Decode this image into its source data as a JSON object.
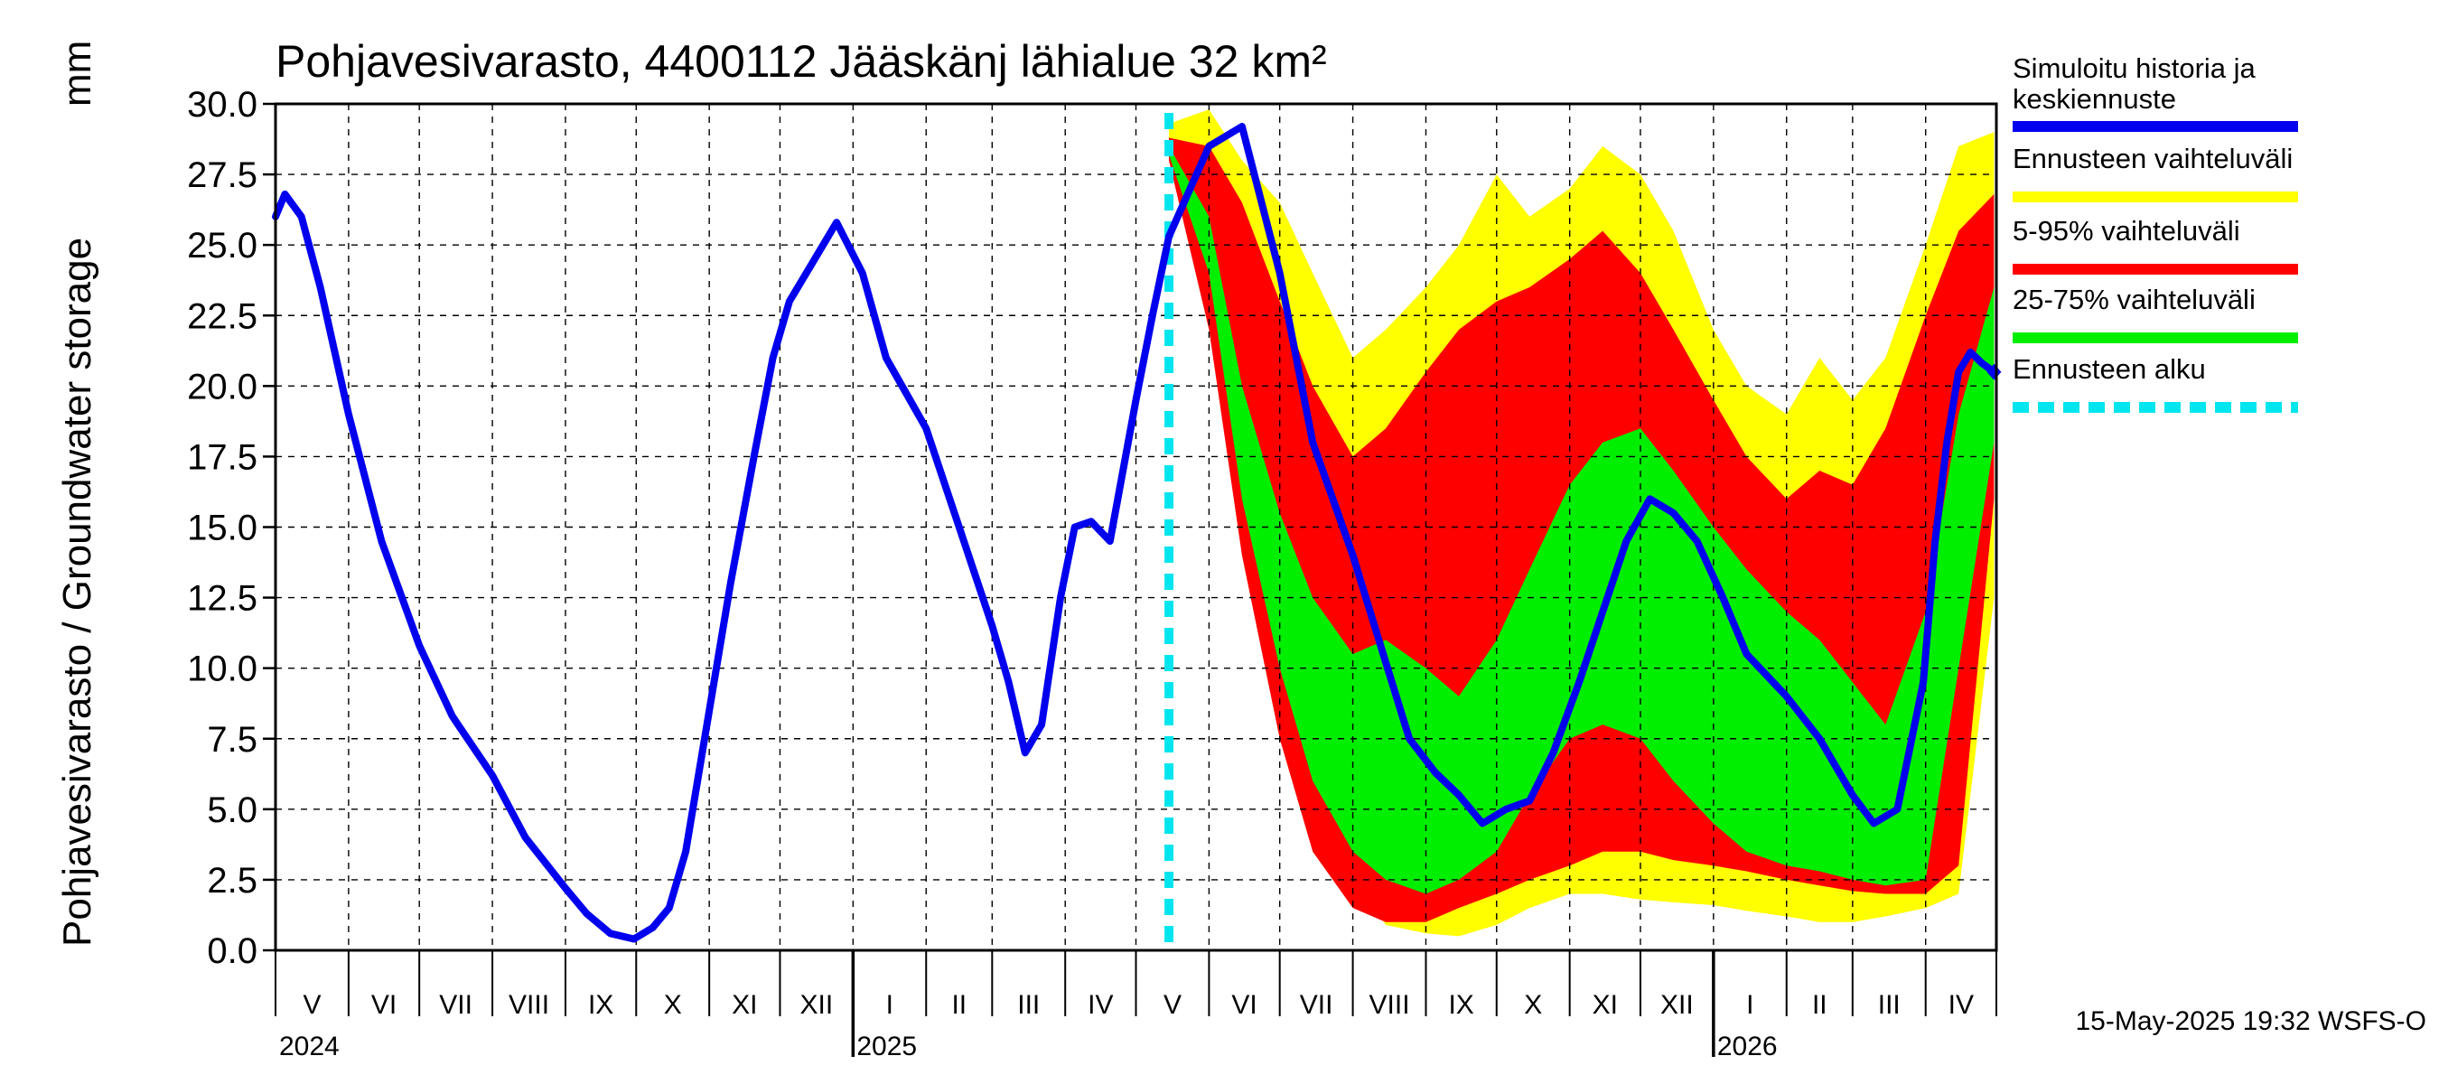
{
  "chart_data": {
    "type": "area",
    "title": "Pohjavesivarasto, 4400112 Jääskänj lähialue 32 km²",
    "ylabel": "Pohjavesivarasto / Groundwater storage",
    "yunit": "mm",
    "ylim": [
      0,
      30
    ],
    "yticks": [
      "0.0",
      "2.5",
      "5.0",
      "7.5",
      "10.0",
      "12.5",
      "15.0",
      "17.5",
      "20.0",
      "22.5",
      "25.0",
      "27.5",
      "30.0"
    ],
    "x_start": "2024-05-01",
    "x_end": "2026-04-30",
    "forecast_start": "2025-05-15",
    "month_labels": [
      "V",
      "VI",
      "VII",
      "VIII",
      "IX",
      "X",
      "XI",
      "XII",
      "I",
      "II",
      "III",
      "IV",
      "V",
      "VI",
      "VII",
      "VIII",
      "IX",
      "X",
      "XI",
      "XII",
      "I",
      "II",
      "III",
      "IV"
    ],
    "year_labels": [
      "2024",
      "2025",
      "2026"
    ],
    "footer": "15-May-2025 19:32 WSFS-O",
    "legend": [
      {
        "label": "Simuloitu historia ja keskiennuste",
        "color": "#0000ee",
        "style": "solid"
      },
      {
        "label": "Ennusteen vaihteluväli",
        "color": "#ffff00",
        "style": "solid"
      },
      {
        "label": "5-95% vaihteluväli",
        "color": "#ff0000",
        "style": "solid"
      },
      {
        "label": "25-75% vaihteluväli",
        "color": "#00ee00",
        "style": "solid"
      },
      {
        "label": "Ennusteen alku",
        "color": "#00e5ee",
        "style": "dashed"
      }
    ],
    "series": [
      {
        "name": "Simuloitu historia ja keskiennuste",
        "x": [
          "2024-05-01",
          "2024-05-05",
          "2024-05-12",
          "2024-05-20",
          "2024-06-01",
          "2024-06-15",
          "2024-07-01",
          "2024-07-15",
          "2024-08-01",
          "2024-08-15",
          "2024-09-01",
          "2024-09-10",
          "2024-09-20",
          "2024-09-30",
          "2024-10-08",
          "2024-10-15",
          "2024-10-22",
          "2024-11-01",
          "2024-11-10",
          "2024-11-20",
          "2024-11-28",
          "2024-12-05",
          "2024-12-15",
          "2024-12-25",
          "2025-01-05",
          "2025-01-15",
          "2025-02-01",
          "2025-02-15",
          "2025-03-01",
          "2025-03-08",
          "2025-03-15",
          "2025-03-22",
          "2025-03-30",
          "2025-04-05",
          "2025-04-12",
          "2025-04-20",
          "2025-05-01",
          "2025-05-08",
          "2025-05-15",
          "2025-06-01",
          "2025-06-15",
          "2025-07-01",
          "2025-07-15",
          "2025-08-01",
          "2025-08-15",
          "2025-08-25",
          "2025-09-05",
          "2025-09-15",
          "2025-09-25",
          "2025-10-05",
          "2025-10-15",
          "2025-10-25",
          "2025-11-05",
          "2025-11-15",
          "2025-11-25",
          "2025-12-05",
          "2025-12-15",
          "2025-12-25",
          "2026-01-05",
          "2026-01-15",
          "2026-02-01",
          "2026-02-15",
          "2026-03-01",
          "2026-03-10",
          "2026-03-20",
          "2026-03-31",
          "2026-04-05",
          "2026-04-10",
          "2026-04-15",
          "2026-04-20",
          "2026-04-25",
          "2026-04-30"
        ],
        "values": [
          26.0,
          26.8,
          26.0,
          23.5,
          19.0,
          14.5,
          10.8,
          8.3,
          6.2,
          4.0,
          2.2,
          1.3,
          0.6,
          0.4,
          0.8,
          1.5,
          3.5,
          8.5,
          13.0,
          17.5,
          21.0,
          23.0,
          24.4,
          25.8,
          24.0,
          21.0,
          18.5,
          15.0,
          11.5,
          9.5,
          7.0,
          8.0,
          12.5,
          15.0,
          15.2,
          14.5,
          19.5,
          22.5,
          25.3,
          28.5,
          29.2,
          24.0,
          18.0,
          14.0,
          10.2,
          7.5,
          6.3,
          5.5,
          4.5,
          5.0,
          5.3,
          7.0,
          9.5,
          12.0,
          14.5,
          16.0,
          15.5,
          14.5,
          12.5,
          10.5,
          9.0,
          7.5,
          5.5,
          4.5,
          5.0,
          9.5,
          14.5,
          18.0,
          20.5,
          21.2,
          20.8,
          20.5
        ]
      },
      {
        "name": "Ennusteen vaihteluväli",
        "x": [
          "2025-05-15",
          "2025-06-01",
          "2025-06-15",
          "2025-07-01",
          "2025-07-15",
          "2025-08-01",
          "2025-08-15",
          "2025-09-01",
          "2025-09-15",
          "2025-10-01",
          "2025-10-15",
          "2025-11-01",
          "2025-11-15",
          "2025-12-01",
          "2025-12-15",
          "2026-01-01",
          "2026-01-15",
          "2026-02-01",
          "2026-02-15",
          "2026-03-01",
          "2026-03-15",
          "2026-04-01",
          "2026-04-15",
          "2026-04-30"
        ],
        "upper": [
          29.3,
          29.8,
          28.0,
          26.5,
          24.0,
          21.0,
          22.0,
          23.5,
          25.0,
          27.5,
          26.0,
          27.0,
          28.5,
          27.5,
          25.5,
          22.0,
          20.0,
          19.0,
          21.0,
          19.5,
          21.0,
          25.0,
          28.5,
          29.0
        ],
        "lower": [
          28.5,
          24.0,
          16.0,
          10.0,
          5.5,
          2.5,
          0.9,
          0.6,
          0.5,
          0.9,
          1.5,
          2.0,
          2.0,
          1.8,
          1.7,
          1.6,
          1.4,
          1.2,
          1.0,
          1.0,
          1.2,
          1.5,
          2.0,
          12.5
        ]
      },
      {
        "name": "5-95% vaihteluväli",
        "x": [
          "2025-05-15",
          "2025-06-01",
          "2025-06-15",
          "2025-07-01",
          "2025-07-15",
          "2025-08-01",
          "2025-08-15",
          "2025-09-01",
          "2025-09-15",
          "2025-10-01",
          "2025-10-15",
          "2025-11-01",
          "2025-11-15",
          "2025-12-01",
          "2025-12-15",
          "2026-01-01",
          "2026-01-15",
          "2026-02-01",
          "2026-02-15",
          "2026-03-01",
          "2026-03-15",
          "2026-04-01",
          "2026-04-15",
          "2026-04-30"
        ],
        "upper": [
          28.8,
          28.5,
          26.5,
          23.0,
          20.0,
          17.5,
          18.5,
          20.5,
          22.0,
          23.0,
          23.5,
          24.5,
          25.5,
          24.0,
          22.0,
          19.5,
          17.5,
          16.0,
          17.0,
          16.5,
          18.5,
          22.5,
          25.5,
          26.8
        ],
        "lower": [
          28.0,
          22.0,
          14.0,
          7.5,
          3.5,
          1.5,
          1.0,
          1.0,
          1.5,
          2.0,
          2.5,
          3.0,
          3.5,
          3.5,
          3.2,
          3.0,
          2.8,
          2.5,
          2.3,
          2.1,
          2.0,
          2.0,
          3.0,
          16.0
        ]
      },
      {
        "name": "25-75% vaihteluväli",
        "x": [
          "2025-05-15",
          "2025-06-01",
          "2025-06-15",
          "2025-07-01",
          "2025-07-15",
          "2025-08-01",
          "2025-08-15",
          "2025-09-01",
          "2025-09-15",
          "2025-10-01",
          "2025-10-15",
          "2025-11-01",
          "2025-11-15",
          "2025-12-01",
          "2025-12-15",
          "2026-01-01",
          "2026-01-15",
          "2026-02-01",
          "2026-02-15",
          "2026-03-01",
          "2026-03-15",
          "2026-04-01",
          "2026-04-15",
          "2026-04-30"
        ],
        "upper": [
          28.5,
          26.0,
          20.0,
          15.5,
          12.5,
          10.5,
          11.0,
          10.0,
          9.0,
          11.0,
          13.5,
          16.5,
          18.0,
          18.5,
          17.0,
          15.0,
          13.5,
          12.0,
          11.0,
          9.5,
          8.0,
          12.0,
          19.0,
          23.5
        ],
        "lower": [
          28.2,
          24.0,
          16.0,
          10.0,
          6.0,
          3.5,
          2.5,
          2.0,
          2.5,
          3.5,
          5.5,
          7.5,
          8.0,
          7.5,
          6.0,
          4.5,
          3.5,
          3.0,
          2.8,
          2.5,
          2.3,
          2.5,
          10.0,
          18.0
        ]
      }
    ]
  }
}
